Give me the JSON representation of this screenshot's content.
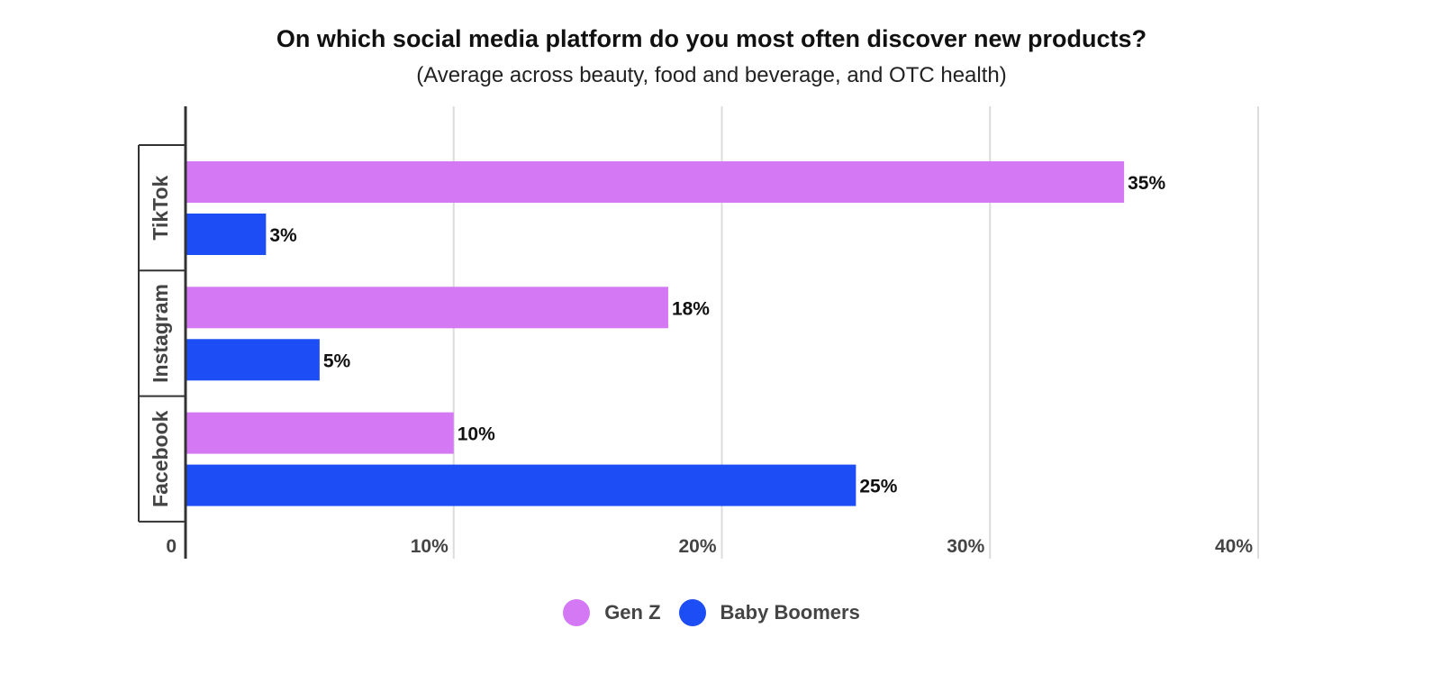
{
  "chart_data": {
    "type": "bar",
    "orientation": "horizontal",
    "title": "On which social media platform do you most often discover new products?",
    "subtitle": "(Average across beauty, food and beverage, and OTC health)",
    "categories": [
      "TikTok",
      "Instagram",
      "Facebook"
    ],
    "series": [
      {
        "name": "Gen Z",
        "color": "#d479f3",
        "values": [
          35,
          18,
          10
        ],
        "labels": [
          "35%",
          "18%",
          "10%"
        ]
      },
      {
        "name": "Baby Boomers",
        "color": "#1d4ef5",
        "values": [
          3,
          5,
          25
        ],
        "labels": [
          "3%",
          "5%",
          "25%"
        ]
      }
    ],
    "xlim": [
      0,
      40
    ],
    "ticks": [
      {
        "value": 0,
        "label": "0"
      },
      {
        "value": 10,
        "label": "10%"
      },
      {
        "value": 20,
        "label": "20%"
      },
      {
        "value": 30,
        "label": "30%"
      },
      {
        "value": 40,
        "label": "40%"
      }
    ],
    "grid": true,
    "legend_position": "bottom-center"
  }
}
